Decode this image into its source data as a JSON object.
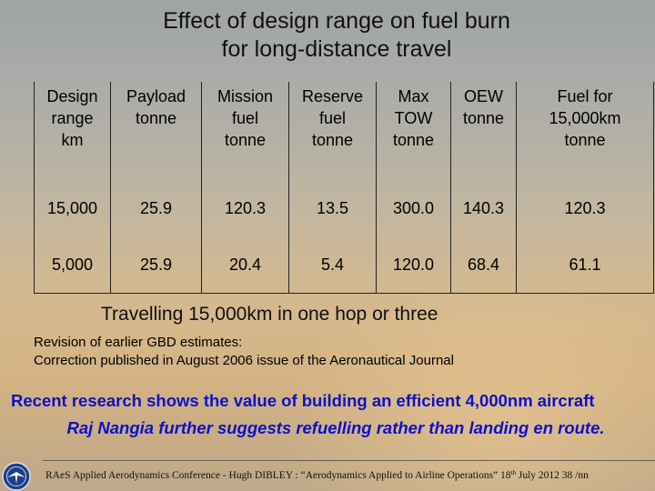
{
  "title": {
    "line1": "Effect of design range on fuel burn",
    "line2": "for long-distance travel"
  },
  "table": {
    "headers": [
      [
        "Design",
        "range",
        "km"
      ],
      [
        "Payload",
        "tonne"
      ],
      [
        "Mission",
        "fuel",
        "tonne"
      ],
      [
        "Reserve",
        "fuel",
        "tonne"
      ],
      [
        "Max",
        "TOW",
        "tonne"
      ],
      [
        "OEW",
        "tonne"
      ],
      [
        "Fuel for",
        "15,000km",
        "tonne"
      ]
    ],
    "rows": [
      [
        "15,000",
        "25.9",
        "120.3",
        "13.5",
        "300.0",
        "140.3",
        "120.3"
      ],
      [
        "5,000",
        "25.9",
        "20.4",
        "5.4",
        "120.0",
        "68.4",
        "61.1"
      ]
    ]
  },
  "subheading": "Travelling 15,000km in one hop or three",
  "notes": [
    "Revision of earlier GBD estimates:",
    "Correction published in August 2006 issue of the Aeronautical Journal"
  ],
  "highlight": "Recent research shows the value of building an efficient 4,000nm aircraft",
  "quote": "Raj Nangia further suggests refuelling rather than landing en route.",
  "footer": {
    "text_before": "RAeS Applied Aerodynamics Conference  -  Hugh DIBLEY :  “Aerodynamics Applied to Airline Operations”   18",
    "superscript": "th",
    "text_after": " July 2012  38 /nn"
  },
  "logo_icon": "raes-logo-icon",
  "colors": {
    "highlight_text": "#1010c8",
    "table_text": "#000000"
  }
}
